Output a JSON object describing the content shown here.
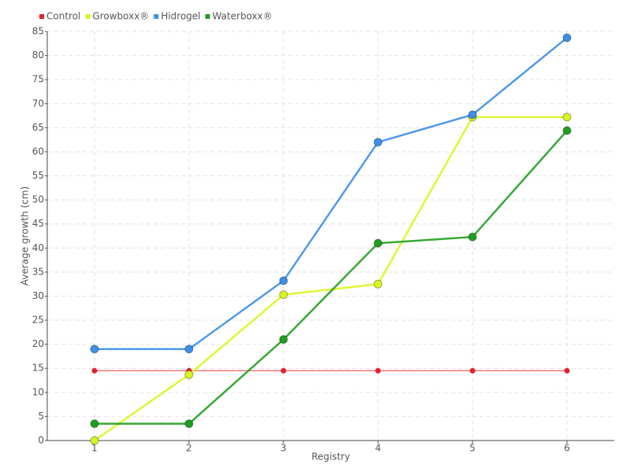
{
  "chart_data": {
    "type": "line",
    "x_label": "Registry",
    "y_label": "Average growth (cm)",
    "categories": [
      "1",
      "2",
      "3",
      "4",
      "5",
      "6"
    ],
    "series": [
      {
        "name": "Control",
        "color": "#e3202c",
        "values": [
          14.5,
          14.5,
          14.5,
          14.5,
          14.5,
          14.5
        ]
      },
      {
        "name": "Growboxx®",
        "color": "#dcf51e",
        "values": [
          0,
          13.7,
          30.3,
          32.5,
          67.2,
          67.2
        ]
      },
      {
        "name": "Hidrogel",
        "color": "#3d8fe8",
        "values": [
          19,
          19,
          33.2,
          62,
          67.7,
          83.7
        ]
      },
      {
        "name": "Waterboxx®",
        "color": "#1f9e1f",
        "values": [
          3.5,
          3.5,
          21,
          41,
          42.3,
          64.4
        ]
      }
    ],
    "ylim": [
      0,
      85
    ],
    "yticks": [
      0,
      5,
      10,
      15,
      20,
      25,
      30,
      35,
      40,
      45,
      50,
      55,
      60,
      65,
      70,
      75,
      80,
      85
    ],
    "grid": true,
    "legend": "top-left"
  }
}
